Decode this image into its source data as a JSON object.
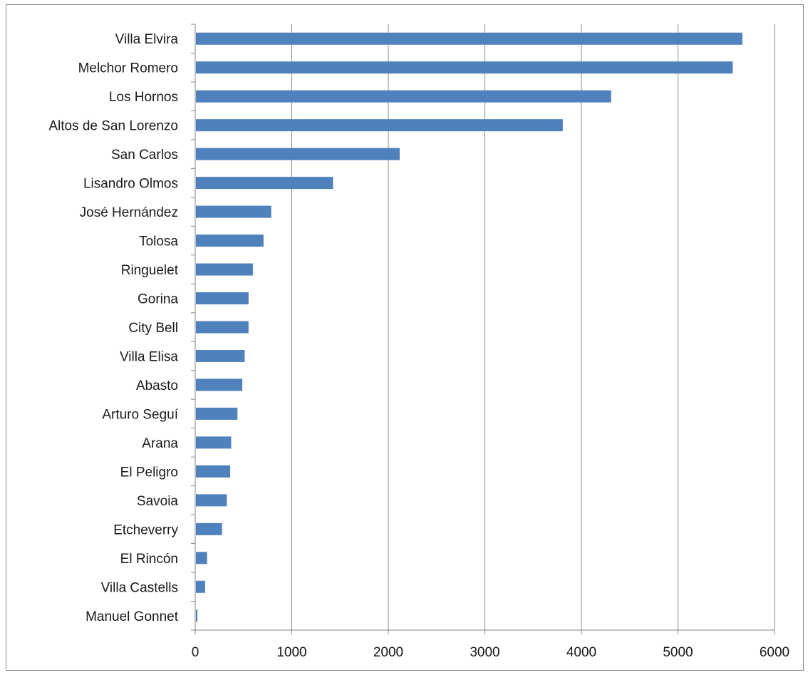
{
  "chart_data": {
    "type": "bar",
    "orientation": "horizontal",
    "title": "",
    "xlabel": "",
    "ylabel": "",
    "categories": [
      "Villa Elvira",
      "Melchor Romero",
      "Los Hornos",
      "Altos de San Lorenzo",
      "San Carlos",
      "Lisandro Olmos",
      "José Hernández",
      "Tolosa",
      "Ringuelet",
      "Gorina",
      "City Bell",
      "Villa Elisa",
      "Abasto",
      "Arturo Seguí",
      "Arana",
      "El Peligro",
      "Savoia",
      "Etcheverry",
      "El Rincón",
      "Villa Castells",
      "Manuel Gonnet"
    ],
    "values": [
      5660,
      5560,
      4300,
      3800,
      2110,
      1420,
      780,
      700,
      590,
      545,
      545,
      505,
      480,
      430,
      365,
      355,
      320,
      270,
      115,
      95,
      15
    ],
    "xlim": [
      0,
      6000
    ],
    "xticks": [
      "0",
      "1000",
      "2000",
      "3000",
      "4000",
      "5000",
      "6000"
    ],
    "grid": "vertical",
    "legend": "none",
    "bar_color": "#4f81bd",
    "grid_color": "#868686"
  }
}
